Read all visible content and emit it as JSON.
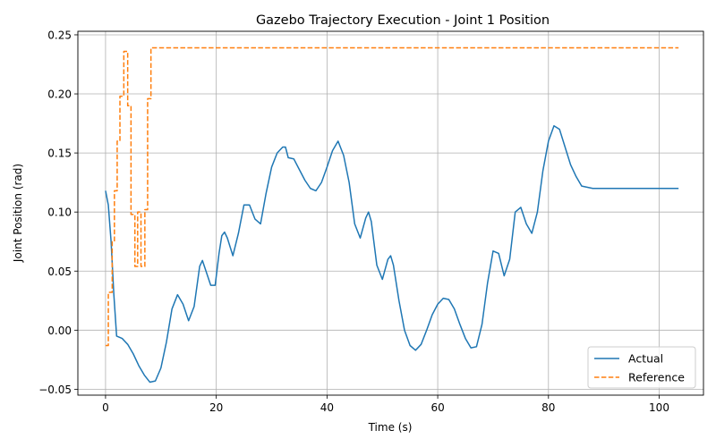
{
  "chart_data": {
    "type": "line",
    "title": "Gazebo Trajectory Execution - Joint 1 Position",
    "xlabel": "Time (s)",
    "ylabel": "Joint Position (rad)",
    "xlim": [
      -5,
      108
    ],
    "ylim": [
      -0.055,
      0.253
    ],
    "x_ticks": [
      0,
      20,
      40,
      60,
      80,
      100
    ],
    "x_tick_labels": [
      "0",
      "20",
      "40",
      "60",
      "80",
      "100"
    ],
    "y_ticks": [
      -0.05,
      0.0,
      0.05,
      0.1,
      0.15,
      0.2,
      0.25
    ],
    "y_tick_labels": [
      "−0.05",
      "0.00",
      "0.05",
      "0.10",
      "0.15",
      "0.20",
      "0.25"
    ],
    "grid": true,
    "legend": {
      "position": "lower-right",
      "entries": [
        "Actual",
        "Reference"
      ]
    },
    "series": [
      {
        "name": "Actual",
        "color": "#1f77b4",
        "style": "solid",
        "x": [
          0,
          0.5,
          1.0,
          1.5,
          2.0,
          3,
          4,
          5,
          6,
          7,
          8,
          9,
          10,
          11,
          12,
          13,
          14,
          15,
          16,
          17,
          17.5,
          18,
          19,
          19.8,
          20.5,
          21,
          21.5,
          22,
          23,
          24,
          25,
          26,
          27,
          28,
          29,
          30,
          31,
          32,
          32.5,
          33,
          34,
          35,
          36,
          37,
          38,
          39,
          40,
          41,
          42,
          43,
          44,
          45,
          46,
          47,
          47.5,
          48,
          49,
          50,
          51,
          51.5,
          52,
          53,
          54,
          55,
          56,
          57,
          58,
          59,
          60,
          61,
          62,
          63,
          64,
          65,
          66,
          67,
          68,
          69,
          70,
          71,
          72,
          73,
          74,
          75,
          76,
          77,
          78,
          79,
          80,
          81,
          82,
          83,
          84,
          85,
          86,
          88,
          90,
          95,
          100,
          103.5
        ],
        "y": [
          0.118,
          0.106,
          0.075,
          0.03,
          -0.005,
          -0.007,
          -0.012,
          -0.02,
          -0.03,
          -0.038,
          -0.044,
          -0.043,
          -0.032,
          -0.01,
          0.018,
          0.03,
          0.022,
          0.008,
          0.02,
          0.054,
          0.059,
          0.052,
          0.038,
          0.038,
          0.065,
          0.08,
          0.083,
          0.078,
          0.063,
          0.082,
          0.106,
          0.106,
          0.094,
          0.09,
          0.116,
          0.138,
          0.15,
          0.155,
          0.155,
          0.146,
          0.145,
          0.136,
          0.127,
          0.12,
          0.118,
          0.125,
          0.138,
          0.152,
          0.16,
          0.148,
          0.125,
          0.09,
          0.078,
          0.095,
          0.1,
          0.092,
          0.055,
          0.043,
          0.06,
          0.063,
          0.055,
          0.025,
          0.0,
          -0.013,
          -0.017,
          -0.012,
          0.0,
          0.013,
          0.022,
          0.027,
          0.026,
          0.018,
          0.005,
          -0.007,
          -0.015,
          -0.014,
          0.005,
          0.04,
          0.067,
          0.065,
          0.046,
          0.06,
          0.1,
          0.104,
          0.09,
          0.082,
          0.1,
          0.135,
          0.16,
          0.173,
          0.17,
          0.155,
          0.14,
          0.13,
          0.122,
          0.12,
          0.12,
          0.12,
          0.12,
          0.12
        ]
      },
      {
        "name": "Reference",
        "color": "#ff7f0e",
        "style": "dashed",
        "x": [
          0,
          0.5,
          0.5,
          1.2,
          1.2,
          1.6,
          1.6,
          2.1,
          2.1,
          2.6,
          2.6,
          3.3,
          3.3,
          4.0,
          4.0,
          4.6,
          4.6,
          5.3,
          5.3,
          5.8,
          5.8,
          6.4,
          6.4,
          7.1,
          7.1,
          7.6,
          7.6,
          8.2,
          8.2,
          103.5
        ],
        "y": [
          -0.013,
          -0.013,
          0.032,
          0.032,
          0.075,
          0.075,
          0.118,
          0.118,
          0.16,
          0.16,
          0.198,
          0.198,
          0.236,
          0.236,
          0.19,
          0.19,
          0.098,
          0.098,
          0.054,
          0.054,
          0.1,
          0.1,
          0.054,
          0.054,
          0.102,
          0.102,
          0.196,
          0.196,
          0.239,
          0.239
        ]
      }
    ]
  }
}
